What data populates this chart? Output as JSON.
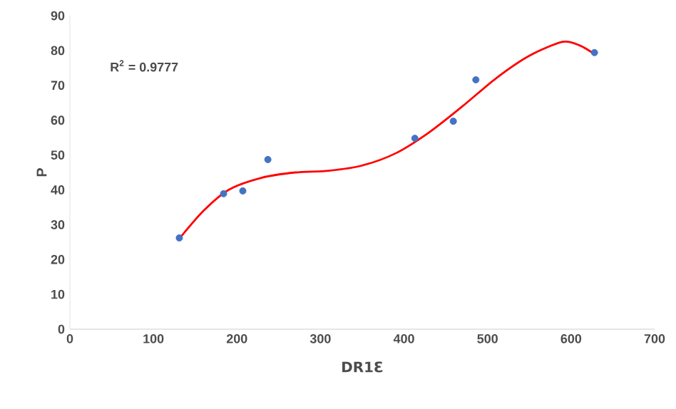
{
  "chart_data": {
    "type": "scatter",
    "xlabel": "DR1Ɛ",
    "ylabel": "P",
    "annotations": [
      "R$^{2}$ = 0.9777"
    ],
    "xlim": [
      0,
      700
    ],
    "xticks": [
      0,
      100,
      200,
      300,
      400,
      500,
      600,
      700
    ],
    "ylim": [
      0,
      90
    ],
    "yticks": [
      0,
      10,
      20,
      30,
      40,
      50,
      60,
      70,
      80,
      90
    ],
    "grid": false,
    "series": [
      {
        "color": "#4472c4",
        "marker": "circle",
        "x": [
          131,
          184,
          207,
          237,
          413,
          459,
          486,
          628
        ],
        "values": [
          26.2,
          38.9,
          39.7,
          48.7,
          54.8,
          59.7,
          71.6,
          79.4
        ]
      },
      {
        "type": "line",
        "color": "#ff0000",
        "marker": "none",
        "line_style": "solid",
        "x": [
          131,
          160,
          190,
          230,
          270,
          310,
          350,
          390,
          430,
          470,
          510,
          550,
          590,
          610,
          628
        ],
        "values": [
          26,
          34,
          40,
          43.5,
          45,
          45.5,
          47,
          50.5,
          56.5,
          64,
          72,
          78.5,
          82.5,
          81.5,
          79
        ]
      }
    ]
  }
}
